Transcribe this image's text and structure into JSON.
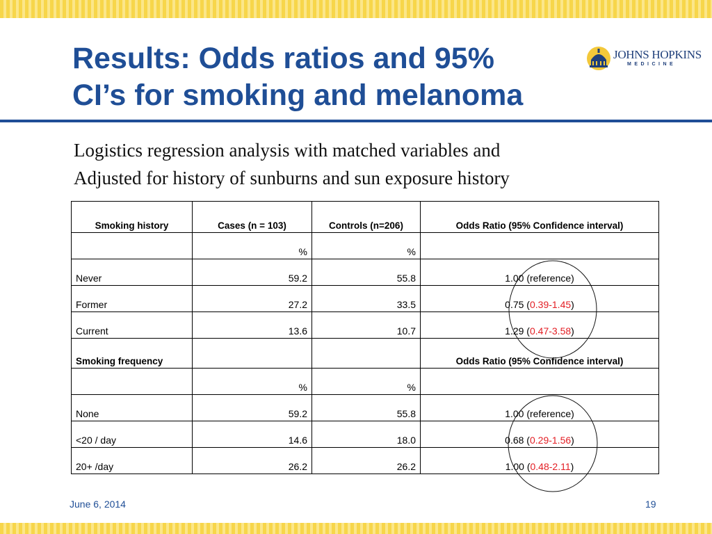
{
  "slide": {
    "title_line1": "Results: Odds ratios and 95%",
    "title_line2": "CI’s for smoking and melanoma",
    "logo": {
      "name": "JOHNS HOPKINS",
      "sub": "MEDICINE"
    },
    "subtitle_line1": "Logistics regression analysis with matched variables and",
    "subtitle_line2": "Adjusted for history of sunburns and sun exposure history",
    "footer_date": "June 6, 2014",
    "page_number": "19"
  },
  "colors": {
    "title": "#1f4e96",
    "ci_highlight": "#e31e24",
    "stripe": "#f7d64a"
  },
  "table": {
    "headers": [
      "Smoking history",
      "Cases (n = 103)",
      "Controls (n=206)",
      "Odds Ratio (95% Confidence interval)"
    ],
    "units": [
      "",
      "%",
      "%",
      ""
    ],
    "rows": [
      {
        "label": "Never",
        "cases": "59.2",
        "controls": "55.8",
        "or": "1.00",
        "ref": "(reference)",
        "ci": ""
      },
      {
        "label": "Former",
        "cases": "27.2",
        "controls": "33.5",
        "or": "0.75",
        "ref": "",
        "ci": "0.39-1.45"
      },
      {
        "label": "Current",
        "cases": "13.6",
        "controls": "10.7",
        "or": "1.29",
        "ref": "",
        "ci": "0.47-3.58"
      }
    ],
    "section2": {
      "header": "Smoking frequency",
      "or_header": "Odds Ratio (95% Confidence interval)",
      "units": [
        "",
        "%",
        "%",
        ""
      ],
      "rows": [
        {
          "label": "None",
          "cases": "59.2",
          "controls": "55.8",
          "or": "1.00",
          "ref": "(reference)",
          "ci": ""
        },
        {
          "label": "<20 / day",
          "cases": "14.6",
          "controls": "18.0",
          "or": "0.68",
          "ref": "",
          "ci": "0.29-1.56"
        },
        {
          "label": "20+ /day",
          "cases": "26.2",
          "controls": "26.2",
          "or": "1.00",
          "ref": "",
          "ci": "0.48-2.11"
        }
      ]
    }
  }
}
